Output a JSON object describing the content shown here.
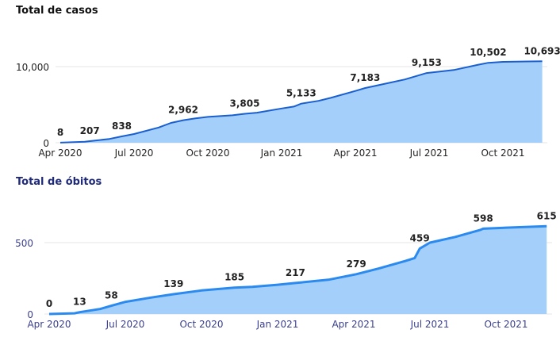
{
  "chart_data": [
    {
      "type": "area",
      "title": "Total de casos",
      "xlabel": "",
      "ylabel": "",
      "x_unit": "months since Apr 2020",
      "x_ticks": [
        {
          "t": 0,
          "label": "Apr 2020"
        },
        {
          "t": 3,
          "label": "Jul 2020"
        },
        {
          "t": 6,
          "label": "Oct 2020"
        },
        {
          "t": 9,
          "label": "Jan 2021"
        },
        {
          "t": 12,
          "label": "Apr 2021"
        },
        {
          "t": 15,
          "label": "Jul 2021"
        },
        {
          "t": 18,
          "label": "Oct 2021"
        }
      ],
      "y_ticks": [
        {
          "v": 0,
          "label": "0"
        },
        {
          "v": 10000,
          "label": "10,000"
        }
      ],
      "ylim": [
        0,
        11000
      ],
      "grid": true,
      "line_color": "#1a5fcf",
      "fill_color": "#a3cffa",
      "tick_color": "#252423",
      "series": [
        [
          0,
          8
        ],
        [
          1,
          120
        ],
        [
          1.2,
          207
        ],
        [
          2,
          500
        ],
        [
          2.5,
          838
        ],
        [
          3,
          1150
        ],
        [
          4,
          2000
        ],
        [
          4.5,
          2600
        ],
        [
          5,
          2962
        ],
        [
          5.5,
          3200
        ],
        [
          6,
          3400
        ],
        [
          7,
          3600
        ],
        [
          7.5,
          3805
        ],
        [
          8,
          3950
        ],
        [
          9,
          4500
        ],
        [
          9.5,
          4750
        ],
        [
          9.8,
          5133
        ],
        [
          10.5,
          5500
        ],
        [
          11,
          5900
        ],
        [
          12,
          6800
        ],
        [
          12.4,
          7183
        ],
        [
          13,
          7600
        ],
        [
          14,
          8300
        ],
        [
          14.9,
          9153
        ],
        [
          16,
          9550
        ],
        [
          17,
          10250
        ],
        [
          17.4,
          10502
        ],
        [
          18,
          10620
        ],
        [
          19,
          10680
        ],
        [
          19.6,
          10693
        ]
      ],
      "data_labels": [
        {
          "t": 0,
          "v": 8,
          "label": "8"
        },
        {
          "t": 1.2,
          "v": 207,
          "label": "207"
        },
        {
          "t": 2.5,
          "v": 838,
          "label": "838"
        },
        {
          "t": 5,
          "v": 2962,
          "label": "2,962"
        },
        {
          "t": 7.5,
          "v": 3805,
          "label": "3,805"
        },
        {
          "t": 9.8,
          "v": 5133,
          "label": "5,133"
        },
        {
          "t": 12.4,
          "v": 7183,
          "label": "7,183"
        },
        {
          "t": 14.9,
          "v": 9153,
          "label": "9,153"
        },
        {
          "t": 17.4,
          "v": 10502,
          "label": "10,502"
        },
        {
          "t": 19.6,
          "v": 10693,
          "label": "10,693"
        }
      ]
    },
    {
      "type": "area",
      "title": "Total de óbitos",
      "xlabel": "",
      "ylabel": "",
      "x_unit": "months since Apr 2020",
      "x_ticks": [
        {
          "t": 0,
          "label": "Apr 2020"
        },
        {
          "t": 3,
          "label": "Jul 2020"
        },
        {
          "t": 6,
          "label": "Oct 2020"
        },
        {
          "t": 9,
          "label": "Jan 2021"
        },
        {
          "t": 12,
          "label": "Apr 2021"
        },
        {
          "t": 15,
          "label": "Jul 2021"
        },
        {
          "t": 18,
          "label": "Oct 2021"
        }
      ],
      "y_ticks": [
        {
          "v": 0,
          "label": "0"
        },
        {
          "v": 500,
          "label": "500"
        }
      ],
      "ylim": [
        0,
        650
      ],
      "grid": true,
      "line_color": "#2b8af0",
      "fill_color": "#a3cffa",
      "tick_color": "#3a3f8f",
      "series": [
        [
          0,
          0
        ],
        [
          1,
          5
        ],
        [
          1.2,
          13
        ],
        [
          2,
          35
        ],
        [
          2.45,
          58
        ],
        [
          3,
          85
        ],
        [
          4,
          115
        ],
        [
          4.9,
          139
        ],
        [
          6,
          165
        ],
        [
          7.3,
          185
        ],
        [
          8,
          190
        ],
        [
          9,
          205
        ],
        [
          9.7,
          217
        ],
        [
          11,
          240
        ],
        [
          12.1,
          279
        ],
        [
          13,
          320
        ],
        [
          14,
          370
        ],
        [
          14.4,
          392
        ],
        [
          14.6,
          459
        ],
        [
          15,
          500
        ],
        [
          16,
          540
        ],
        [
          17,
          590
        ],
        [
          17.1,
          598
        ],
        [
          18,
          605
        ],
        [
          19.6,
          615
        ]
      ],
      "data_labels": [
        {
          "t": 0,
          "v": 0,
          "label": "0"
        },
        {
          "t": 1.2,
          "v": 13,
          "label": "13"
        },
        {
          "t": 2.45,
          "v": 58,
          "label": "58"
        },
        {
          "t": 4.9,
          "v": 139,
          "label": "139"
        },
        {
          "t": 7.3,
          "v": 185,
          "label": "185"
        },
        {
          "t": 9.7,
          "v": 217,
          "label": "217"
        },
        {
          "t": 12.1,
          "v": 279,
          "label": "279"
        },
        {
          "t": 14.6,
          "v": 459,
          "label": "459"
        },
        {
          "t": 17.1,
          "v": 598,
          "label": "598"
        },
        {
          "t": 19.6,
          "v": 615,
          "label": "615"
        }
      ]
    }
  ]
}
